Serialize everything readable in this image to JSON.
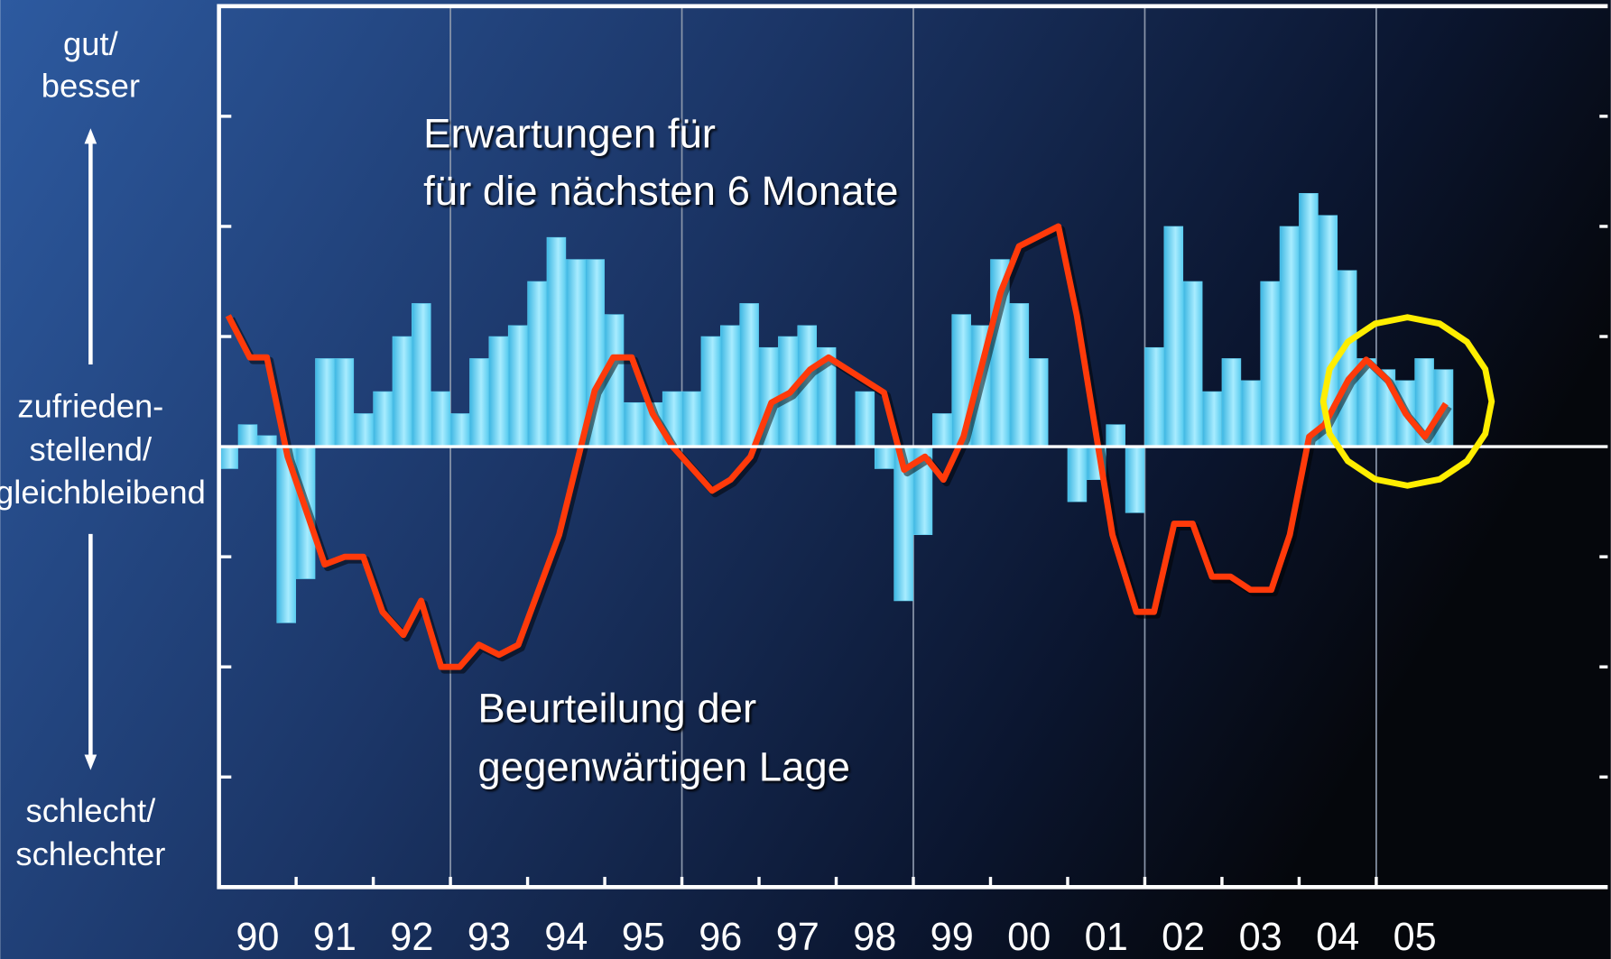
{
  "chart_data": {
    "type": "bar",
    "xlim": [
      1990,
      2008
    ],
    "ylim": [
      -4,
      4
    ],
    "yticks": [
      -3,
      -2,
      -1,
      1,
      2,
      3
    ],
    "xticks": [
      {
        "value": 1990,
        "label": "90"
      },
      {
        "value": 1991,
        "label": "91"
      },
      {
        "value": 1992,
        "label": "92"
      },
      {
        "value": 1993,
        "label": "93"
      },
      {
        "value": 1994,
        "label": "94"
      },
      {
        "value": 1995,
        "label": "95"
      },
      {
        "value": 1996,
        "label": "96"
      },
      {
        "value": 1997,
        "label": "97"
      },
      {
        "value": 1998,
        "label": "98"
      },
      {
        "value": 1999,
        "label": "99"
      },
      {
        "value": 2000,
        "label": "00"
      },
      {
        "value": 2001,
        "label": "01"
      },
      {
        "value": 2002,
        "label": "02"
      },
      {
        "value": 2003,
        "label": "03"
      },
      {
        "value": 2004,
        "label": "04"
      },
      {
        "value": 2005,
        "label": "05"
      }
    ],
    "xgrid": [
      1993,
      1996,
      1999,
      2002,
      2005
    ],
    "axis_labels": {
      "top": [
        "gut/",
        "besser"
      ],
      "middle": [
        "zufrieden-",
        "stellend/",
        "gleichbleibend"
      ],
      "bottom": [
        "schlecht/",
        "schlechter"
      ]
    },
    "annotations": [
      {
        "lines": [
          "Erwartungen für",
          "für die nächsten 6 Monate"
        ]
      },
      {
        "lines": [
          "Beurteilung der",
          "gegenwärtigen Lage"
        ]
      }
    ],
    "series": [
      {
        "type": "bar",
        "color": "#5ccdf0",
        "x": [
          1990,
          1990.25,
          1990.5,
          1990.75,
          1991,
          1991.25,
          1991.5,
          1991.75,
          1992,
          1992.25,
          1992.5,
          1992.75,
          1993,
          1993.25,
          1993.5,
          1993.75,
          1994,
          1994.25,
          1994.5,
          1994.75,
          1995,
          1995.25,
          1995.5,
          1995.75,
          1996,
          1996.25,
          1996.5,
          1996.75,
          1997,
          1997.25,
          1997.5,
          1997.75,
          1998,
          1998.25,
          1998.5,
          1998.75,
          1999,
          1999.25,
          1999.5,
          1999.75,
          2000,
          2000.25,
          2000.5,
          2000.75,
          2001,
          2001.25,
          2001.5,
          2001.75,
          2002,
          2002.25,
          2002.5,
          2002.75,
          2003,
          2003.25,
          2003.5,
          2003.75,
          2004,
          2004.25,
          2004.5,
          2004.75,
          2005,
          2005.25,
          2005.5,
          2005.75
        ],
        "values": [
          -0.2,
          0.2,
          0.1,
          -1.6,
          -1.2,
          0.8,
          0.8,
          0.3,
          0.5,
          1.0,
          1.3,
          0.5,
          0.3,
          0.8,
          1.0,
          1.1,
          1.5,
          1.9,
          1.7,
          1.7,
          1.2,
          0.4,
          0.4,
          0.5,
          0.5,
          1.0,
          1.1,
          1.3,
          0.9,
          1.0,
          1.1,
          0.9,
          0,
          0.5,
          -0.2,
          -1.4,
          -0.8,
          0.3,
          1.2,
          1.1,
          1.7,
          1.3,
          0.8,
          0,
          -0.5,
          -0.3,
          0.2,
          -0.6,
          0.9,
          2.0,
          1.5,
          0.5,
          0.8,
          0.6,
          1.5,
          2.0,
          2.3,
          2.1,
          1.6,
          0.8,
          0.7,
          0.6,
          0.8,
          0.7
        ]
      },
      {
        "type": "line",
        "color": "#ff3a0a",
        "x": [
          1990.12,
          1990.4,
          1990.62,
          1990.89,
          1991.37,
          1991.63,
          1991.87,
          1992.12,
          1992.39,
          1992.62,
          1992.88,
          1993.12,
          1993.37,
          1993.63,
          1993.88,
          1994.41,
          1994.87,
          1995.11,
          1995.35,
          1995.62,
          1995.88,
          1996.39,
          1996.63,
          1996.89,
          1997.16,
          1997.4,
          1997.66,
          1997.9,
          1998.62,
          1998.88,
          1999.15,
          1999.39,
          1999.65,
          2000.13,
          2000.37,
          2000.88,
          2001.12,
          2001.58,
          2001.89,
          2002.12,
          2002.38,
          2002.62,
          2002.87,
          2003.11,
          2003.37,
          2003.64,
          2003.88,
          2004.13,
          2004.33,
          2004.64,
          2004.87,
          2005.14,
          2005.38,
          2005.63,
          2005.9
        ],
        "values": [
          1.19,
          0.81,
          0.81,
          -0.09,
          -1.07,
          -1.0,
          -1.0,
          -1.5,
          -1.71,
          -1.4,
          -2.0,
          -2.0,
          -1.8,
          -1.89,
          -1.8,
          -0.8,
          0.51,
          0.81,
          0.81,
          0.3,
          0,
          -0.4,
          -0.3,
          -0.09,
          0.4,
          0.49,
          0.7,
          0.81,
          0.49,
          -0.21,
          -0.09,
          -0.3,
          0.09,
          1.4,
          1.82,
          2.0,
          1.19,
          -0.8,
          -1.5,
          -1.5,
          -0.7,
          -0.7,
          -1.18,
          -1.18,
          -1.3,
          -1.3,
          -0.8,
          0.09,
          0.2,
          0.61,
          0.79,
          0.61,
          0.3,
          0.09,
          0.39
        ]
      }
    ]
  }
}
